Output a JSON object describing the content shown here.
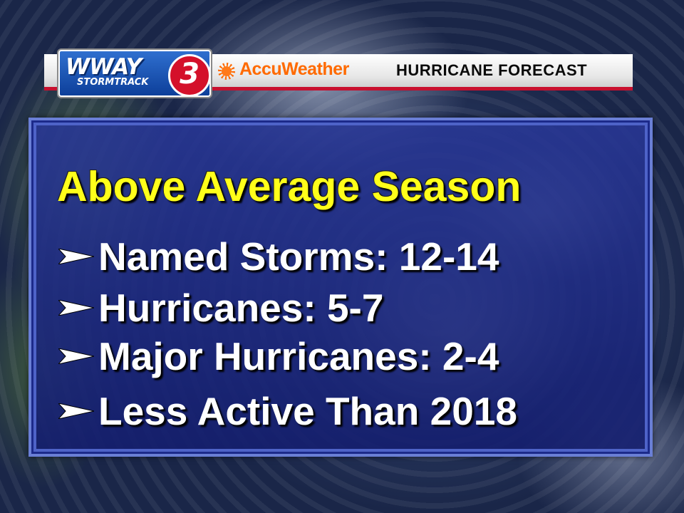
{
  "header": {
    "station_logo": "WWAY",
    "station_number": "3",
    "station_sub": "STORMTRACK",
    "provider": "AccuWeather",
    "segment_title": "HURRICANE FORECAST"
  },
  "panel": {
    "title": "Above Average Season",
    "items": [
      {
        "label": "Named Storms: 12-14"
      },
      {
        "label": "Hurricanes: 5-7"
      },
      {
        "label": "Major Hurricanes: 2-4"
      },
      {
        "label": "Less Active Than 2018"
      }
    ]
  },
  "colors": {
    "title": "#ffff1a",
    "text": "#ffffff",
    "panel": "#26349a",
    "accent_red": "#c8102e",
    "accu_orange": "#ff6a00"
  }
}
